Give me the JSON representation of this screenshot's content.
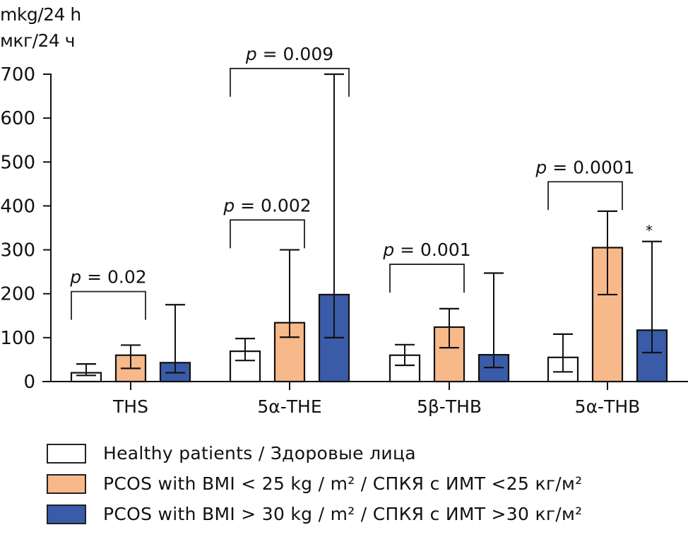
{
  "chart_data": {
    "type": "bar",
    "title": "",
    "ylabel_lines": [
      "mkg/24 h",
      "мкг/24 ч"
    ],
    "xlabel": "",
    "ylim": [
      0,
      700
    ],
    "yticks": [
      0,
      100,
      200,
      300,
      400,
      500,
      600,
      700
    ],
    "ytick_labels": [
      "0",
      "100",
      "200",
      "300",
      "400",
      "500",
      "600",
      "700"
    ],
    "grid": false,
    "categories": [
      "THS",
      "5α-THE",
      "5β-THB",
      "5α-THB"
    ],
    "series": [
      {
        "name": "Healthy patients / Здоровые лица",
        "color": "#ffffff",
        "values": [
          20,
          69,
          60,
          55
        ],
        "err_low": [
          14,
          48,
          37,
          22
        ],
        "err_high": [
          40,
          98,
          84,
          108
        ]
      },
      {
        "name": "PCOS with BMI < 25 kg / m² / СПКЯ с ИМТ <25 кг/м²",
        "color": "#F7B98A",
        "values": [
          60,
          134,
          124,
          305
        ],
        "err_low": [
          30,
          101,
          77,
          198
        ],
        "err_high": [
          83,
          300,
          166,
          388
        ]
      },
      {
        "name": "PCOS with BMI > 30 kg / m² / СПКЯ с ИМТ >30 кг/м²",
        "color": "#3A5BA8",
        "values": [
          43,
          198,
          61,
          117
        ],
        "err_low": [
          20,
          100,
          32,
          66
        ],
        "err_high": [
          175,
          700,
          247,
          319
        ]
      }
    ],
    "annotations": [
      {
        "text": "p = 0.02",
        "category": "THS",
        "from_series": 0,
        "to_series": 1,
        "level": 205
      },
      {
        "text": "p = 0.002",
        "category": "5α-THE",
        "from_series": 0,
        "to_series": 1,
        "level": 368
      },
      {
        "text": "p = 0.009",
        "category": "5α-THE",
        "from_series": 0,
        "to_series": 2,
        "level": 713
      },
      {
        "text": "p = 0.001",
        "category": "5β-THB",
        "from_series": 0,
        "to_series": 1,
        "level": 267
      },
      {
        "text": "p = 0.0001",
        "category": "5α-THB",
        "from_series": 0,
        "to_series": 1,
        "level": 455
      },
      {
        "text": "*",
        "category": "5α-THB",
        "series": 2,
        "kind": "asterisk",
        "level": 345
      }
    ],
    "legend_position": "bottom-left"
  },
  "legend": {
    "items": [
      {
        "label": "Healthy patients / Здоровые лица",
        "color": "#ffffff"
      },
      {
        "label": "PCOS with BMI < 25 kg / m² / СПКЯ с ИМТ <25 кг/м²",
        "color": "#F7B98A"
      },
      {
        "label": "PCOS with BMI > 30 kg / m² / СПКЯ с ИМТ >30 кг/м²",
        "color": "#3A5BA8"
      }
    ]
  }
}
